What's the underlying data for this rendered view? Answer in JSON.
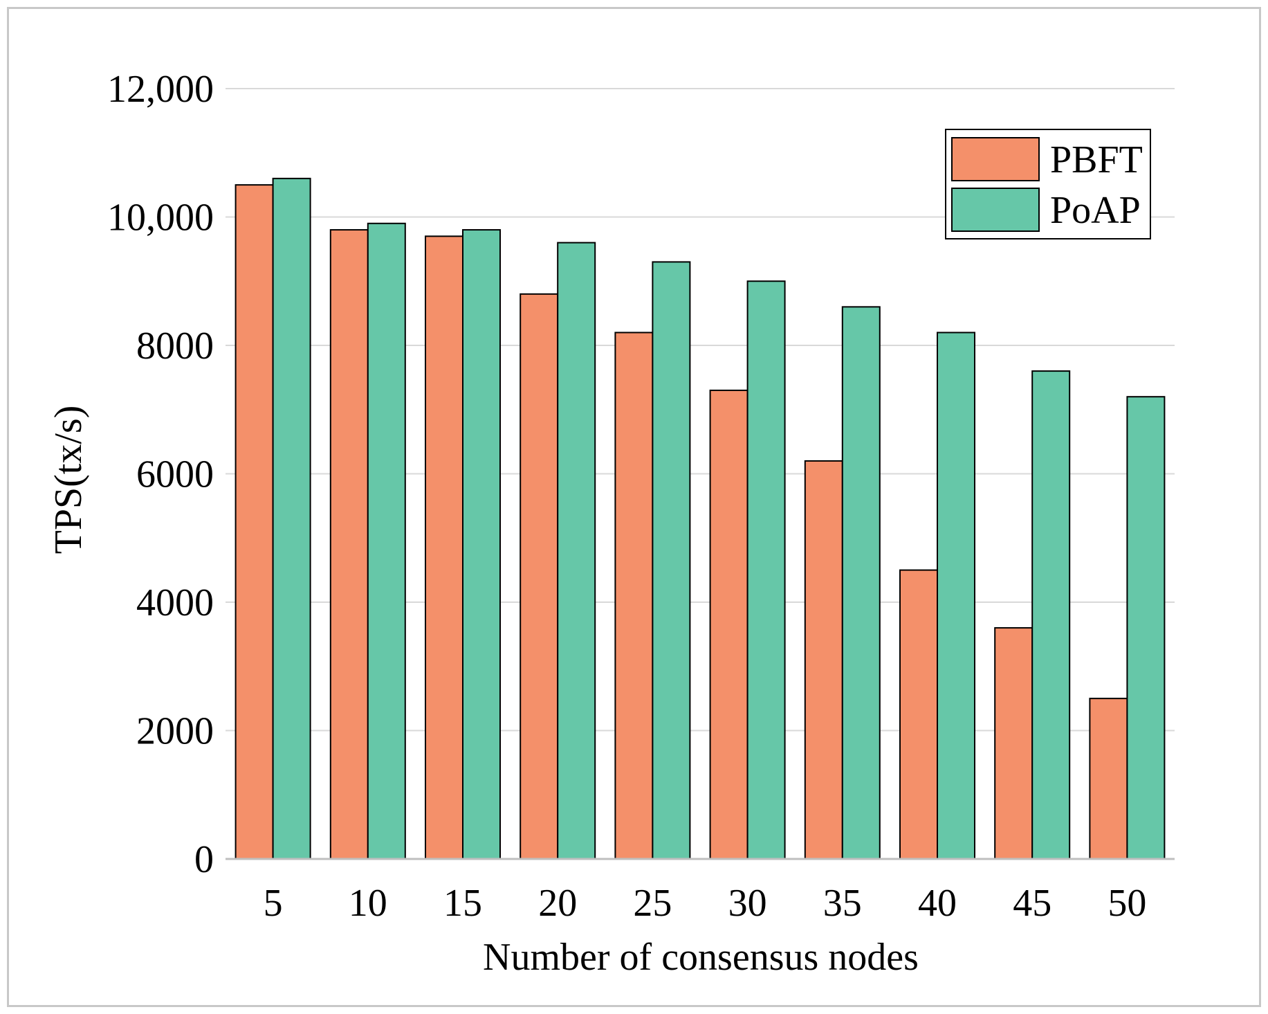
{
  "chart_data": {
    "type": "bar",
    "title": "",
    "xlabel": "Number of consensus nodes",
    "ylabel": "TPS(tx/s)",
    "categories": [
      "5",
      "10",
      "15",
      "20",
      "25",
      "30",
      "35",
      "40",
      "45",
      "50"
    ],
    "series": [
      {
        "name": "PBFT",
        "color": "#F4906A",
        "values": [
          10500,
          9800,
          9700,
          8800,
          8200,
          7300,
          6200,
          4500,
          3600,
          2500
        ]
      },
      {
        "name": "PoAP",
        "color": "#66C7A8",
        "values": [
          10600,
          9900,
          9800,
          9600,
          9300,
          9000,
          8600,
          8200,
          7600,
          7200
        ]
      }
    ],
    "ylim": [
      0,
      12000
    ],
    "yticks": [
      0,
      2000,
      4000,
      6000,
      8000,
      10000,
      12000
    ],
    "ytick_labels": [
      "0",
      "2000",
      "4000",
      "6000",
      "8000",
      "10,000",
      "12,000"
    ],
    "grid": true,
    "gridColor": "#d9d9d9",
    "legend": "top-right"
  }
}
